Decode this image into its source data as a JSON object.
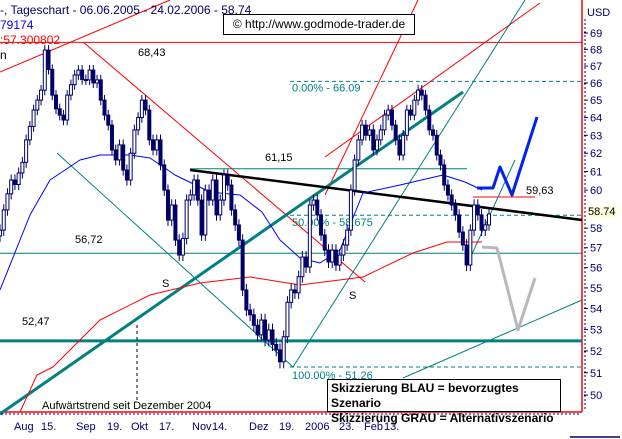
{
  "header": {
    "title_line": "-, Tageschart - 06.06.2005 - 24.02.2006 - 58.74",
    "line2": "79174",
    "line3": ":57.300802",
    "line4": "n",
    "copyright": "© http://www.godmode-trader.de"
  },
  "legend": {
    "blue": "Skizzierung BLAU = bevorzugtes Szenario",
    "gray": "Skizzierung GRAU = Alternativszenario"
  },
  "colors": {
    "candle": "#000066",
    "ma_fast": "#0000ff",
    "ma_slow": "#ff0000",
    "trend": "#008080",
    "resistance": "#000000",
    "scenario_blue": "#0022ee",
    "scenario_gray": "#b8b8b8",
    "frame": "#ff0000"
  },
  "chart_data": {
    "type": "candlestick",
    "currency_label": "USD",
    "last_price": "58.74",
    "y_scale": "log",
    "ylim": [
      49.2,
      70.5
    ],
    "y_ticks": [
      "69",
      "68",
      "67",
      "66",
      "65",
      "64",
      "63",
      "62",
      "61",
      "60",
      "58",
      "57",
      "56",
      "55",
      "54",
      "53",
      "52",
      "51",
      "50"
    ],
    "x_ticks": [
      "Aug",
      "15.",
      "Sep",
      "19.",
      "Okt",
      "17.",
      "Nov",
      "14.",
      "Dez",
      "19.",
      "2006",
      "23.",
      "Feb",
      "13."
    ],
    "closes": [
      57.9,
      58.95,
      59.8,
      60.54,
      60.3,
      60.92,
      61.5,
      62.74,
      63.5,
      64.43,
      65.0,
      65.58,
      67.96,
      66.8,
      65.29,
      64.5,
      64.14,
      63.86,
      65.29,
      65.9,
      66.47,
      66.76,
      66.2,
      66.18,
      66.76,
      66.0,
      66.18,
      65.0,
      64.14,
      63.57,
      62.18,
      61.63,
      62.46,
      61.08,
      60.54,
      62.0,
      63.3,
      64.0,
      65.0,
      64.43,
      62.74,
      62.18,
      62.74,
      61.36,
      60.0,
      58.42,
      59.21,
      57.39,
      56.63,
      57.47,
      59.47,
      59.74,
      60.54,
      59.47,
      57.65,
      60.0,
      59.47,
      60.54,
      58.69,
      59.47,
      60.81,
      60.27,
      58.95,
      58.17,
      57.39,
      54.9,
      53.93,
      53.7,
      53.2,
      52.75,
      53.45,
      52.51,
      52.98,
      52.3,
      52.05,
      51.5,
      52.66,
      54.3,
      54.9,
      54.76,
      55.55,
      56.53,
      56.03,
      59.21,
      59.47,
      58.69,
      57.65,
      56.88,
      56.28,
      56.88,
      56.13,
      56.63,
      57.14,
      57.9,
      60.0,
      61.63,
      62.74,
      63.57,
      63.0,
      63.3,
      62.18,
      62.74,
      63.3,
      64.14,
      64.43,
      63.57,
      62.74,
      61.9,
      63.0,
      64.43,
      64.14,
      65.0,
      65.58,
      65.29,
      64.43,
      63.3,
      63.0,
      61.9,
      61.36,
      60.27,
      59.74,
      59.21,
      58.69,
      57.8,
      57.14,
      56.13,
      57.9,
      59.21,
      58.69,
      57.9,
      58.17,
      58.74
    ],
    "levels": [
      {
        "label": "68,43",
        "value": 68.43
      },
      {
        "label": "61,15",
        "value": 61.15
      },
      {
        "label": "59,63",
        "value": 59.63
      },
      {
        "label": "56,72",
        "value": 56.72
      },
      {
        "label": "52,47",
        "value": 52.47
      }
    ],
    "fibonacci": [
      {
        "label": "0.00% - 66.09",
        "value": 66.09
      },
      {
        "label": "50.00% - 58.675",
        "value": 58.675
      },
      {
        "label": "100.00% - 51.26",
        "value": 51.26
      }
    ],
    "annotations": {
      "support_mark": "S",
      "trend_note": "Aufwärtstrend seit Dezember 2004"
    }
  }
}
